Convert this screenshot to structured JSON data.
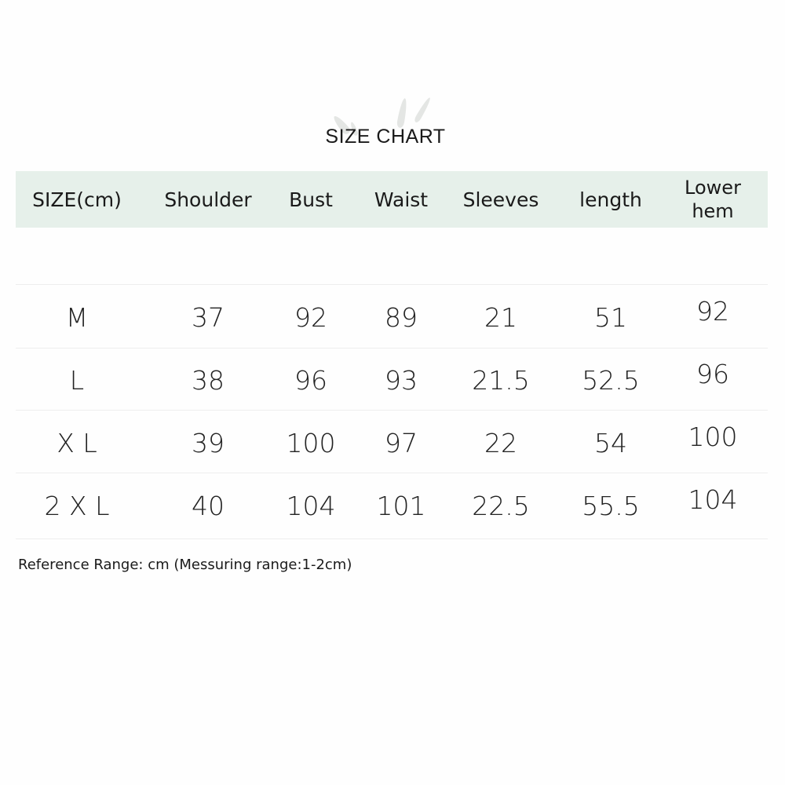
{
  "title": "SIZE CHART",
  "columns": [
    "SIZE(cm)",
    "Shoulder",
    "Bust",
    "Waist",
    "Sleeves",
    "length",
    "Lower hem"
  ],
  "rows": [
    [
      "M",
      "37",
      "92",
      "89",
      "21",
      "51",
      "92"
    ],
    [
      "L",
      "38",
      "96",
      "93",
      "21.5",
      "52.5",
      "96"
    ],
    [
      "X L",
      "39",
      "100",
      "97",
      "22",
      "54",
      "100"
    ],
    [
      "2 X L",
      "40",
      "104",
      "101",
      "22.5",
      "55.5",
      "104"
    ]
  ],
  "note": "Reference Range: cm (Messuring range:1-2cm)",
  "colors": {
    "header_background": "#e6f0ea",
    "text": "#1a1a1a"
  }
}
